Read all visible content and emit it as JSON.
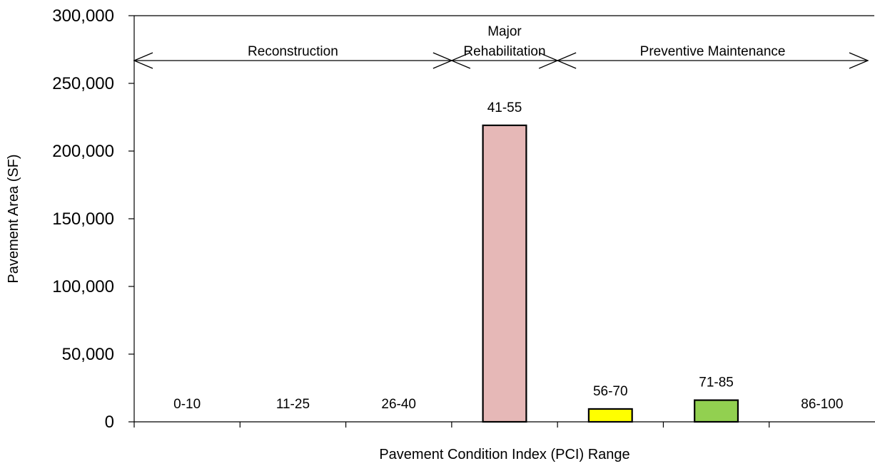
{
  "chart_data": {
    "type": "bar",
    "title": "",
    "xlabel": "Pavement Condition Index (PCI) Range",
    "ylabel": "Pavement  Area (SF)",
    "ylim": [
      0,
      300000
    ],
    "yticks": [
      0,
      50000,
      100000,
      150000,
      200000,
      250000,
      300000
    ],
    "ytick_labels": [
      "0",
      "50,000",
      "100,000",
      "150,000",
      "200,000",
      "250,000",
      "300,000"
    ],
    "grid": false,
    "legend": "none",
    "categories": [
      "0-10",
      "11-25",
      "26-40",
      "41-55",
      "56-70",
      "71-85",
      "86-100"
    ],
    "values": [
      0,
      0,
      0,
      219000,
      9500,
      16000,
      0
    ],
    "bar_colors": [
      "#e6b8b7",
      "#e6b8b7",
      "#e6b8b7",
      "#e6b8b7",
      "#ffff00",
      "#92d050",
      "#92d050"
    ],
    "zones": [
      {
        "label_lines": [
          "Reconstruction"
        ],
        "from_category": 0,
        "to_category": 2
      },
      {
        "label_lines": [
          "Major",
          "Rehabilitation"
        ],
        "from_category": 3,
        "to_category": 3
      },
      {
        "label_lines": [
          "Preventive Maintenance"
        ],
        "from_category": 4,
        "to_category": 6
      }
    ]
  }
}
